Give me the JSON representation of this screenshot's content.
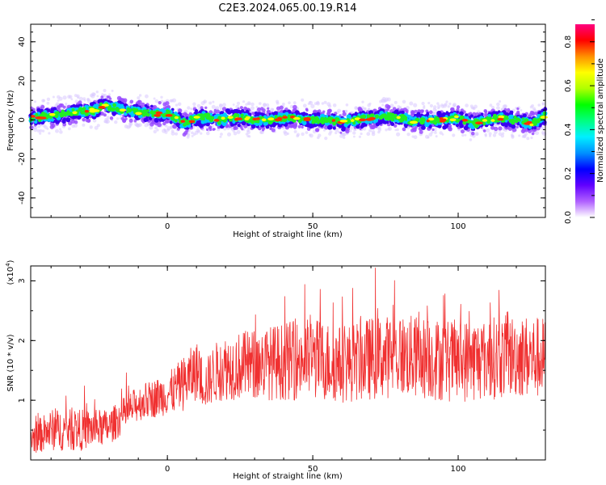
{
  "figure": {
    "title": "C2E3.2024.065.00.19.R14"
  },
  "chart_data": [
    {
      "type": "heatmap",
      "title": "C2E3.2024.065.00.19.R14",
      "xlabel": "Height of straight line (km)",
      "ylabel": "Frequency (Hz)",
      "xlim": [
        -47,
        130
      ],
      "ylim": [
        -50,
        49
      ],
      "x_ticks": [
        0,
        50,
        100
      ],
      "x_tick_labels": [
        "0",
        "50",
        "100"
      ],
      "y_ticks": [
        -40,
        -20,
        0,
        20,
        40
      ],
      "y_tick_labels": [
        "-40",
        "-20",
        "0",
        "20",
        "40"
      ],
      "ridge": {
        "x": [
          -47,
          -40,
          -35,
          -30,
          -25,
          -22,
          -18,
          -15,
          -10,
          -5,
          0,
          4,
          6,
          10,
          14,
          18,
          22,
          26,
          30,
          35,
          40,
          45,
          50,
          55,
          60,
          65,
          70,
          75,
          80,
          85,
          90,
          95,
          100,
          105,
          110,
          115,
          120,
          125,
          130
        ],
        "freq": [
          1,
          2,
          3,
          4,
          5,
          7,
          6,
          5,
          4,
          3,
          3,
          0,
          -2,
          1,
          1,
          0,
          1,
          1,
          0,
          0,
          1,
          1,
          0,
          0,
          -1,
          0,
          1,
          2,
          1,
          -1,
          0,
          0,
          1,
          -2,
          0,
          1,
          0,
          -2,
          2
        ]
      },
      "colorbar": {
        "label": "Normalized spectral amplitude",
        "range": [
          0,
          0.88
        ],
        "ticks": [
          0.0,
          0.2,
          0.4,
          0.6,
          0.8
        ],
        "tick_labels": [
          "0.0",
          "0.2",
          "0.4",
          "0.6",
          "0.8"
        ],
        "colormap": [
          "#d8c8ff",
          "#9a4dff",
          "#3a00f0",
          "#0033ff",
          "#00c8ff",
          "#00e6a0",
          "#22ee22",
          "#aaee00",
          "#ffff00",
          "#ffb000",
          "#ff3000",
          "#ff1060"
        ]
      }
    },
    {
      "type": "line",
      "xlabel": "Height of straight line (km)",
      "ylabel": "SNR (10 * v/v)",
      "y_scale_note": "(x10",
      "y_scale_exp": "4",
      "y_scale_close": ")",
      "xlim": [
        -47,
        130
      ],
      "ylim": [
        0,
        3.25
      ],
      "x_ticks": [
        0,
        50,
        100
      ],
      "x_tick_labels": [
        "0",
        "50",
        "100"
      ],
      "y_ticks": [
        1,
        2,
        3
      ],
      "y_tick_labels": [
        "1",
        "2",
        "3"
      ],
      "color": "#f03030",
      "envelope": {
        "x": [
          -47,
          -40,
          -30,
          -20,
          -10,
          0,
          5,
          10,
          13,
          16,
          20,
          30,
          40,
          50,
          60,
          70,
          80,
          90,
          100,
          110,
          120,
          130
        ],
        "mean": [
          0.35,
          0.5,
          0.5,
          0.55,
          0.95,
          1.1,
          1.25,
          1.5,
          1.25,
          1.45,
          1.55,
          1.6,
          1.65,
          1.7,
          1.6,
          1.7,
          1.75,
          1.7,
          1.65,
          1.7,
          1.75,
          1.7
        ],
        "spread": [
          0.25,
          0.35,
          0.35,
          0.3,
          0.3,
          0.35,
          0.45,
          0.5,
          0.4,
          0.5,
          0.55,
          0.6,
          0.65,
          0.7,
          0.65,
          0.7,
          0.7,
          0.7,
          0.7,
          0.7,
          0.7,
          0.7
        ]
      }
    }
  ]
}
